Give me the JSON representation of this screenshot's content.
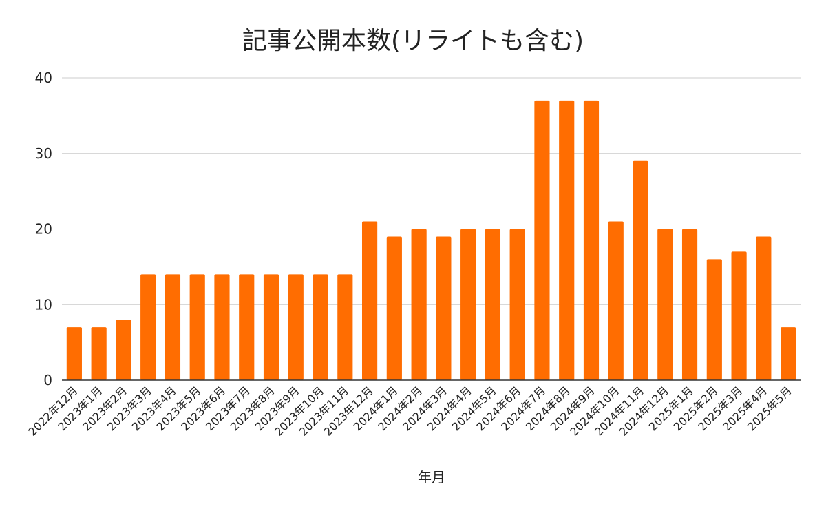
{
  "chart_data": {
    "type": "bar",
    "title": "記事公開本数(リライトも含む)",
    "xlabel": "年月",
    "ylabel": "",
    "ylim": [
      0,
      40
    ],
    "yticks": [
      0,
      10,
      20,
      30,
      40
    ],
    "grid": true,
    "legend": "none",
    "bar_color": "#FF6D01",
    "categories": [
      "2022年12月",
      "2023年1月",
      "2023年2月",
      "2023年3月",
      "2023年4月",
      "2023年5月",
      "2023年6月",
      "2023年7月",
      "2023年8月",
      "2023年9月",
      "2023年10月",
      "2023年11月",
      "2023年12月",
      "2024年1月",
      "2024年2月",
      "2024年3月",
      "2024年4月",
      "2024年5月",
      "2024年6月",
      "2024年7月",
      "2024年8月",
      "2024年9月",
      "2024年10月",
      "2024年11月",
      "2024年12月",
      "2025年1月",
      "2025年2月",
      "2025年3月",
      "2025年4月",
      "2025年5月"
    ],
    "values": [
      7,
      7,
      8,
      14,
      14,
      14,
      14,
      14,
      14,
      14,
      14,
      14,
      21,
      19,
      20,
      19,
      20,
      20,
      20,
      37,
      37,
      37,
      21,
      29,
      20,
      20,
      16,
      17,
      19,
      7
    ]
  }
}
